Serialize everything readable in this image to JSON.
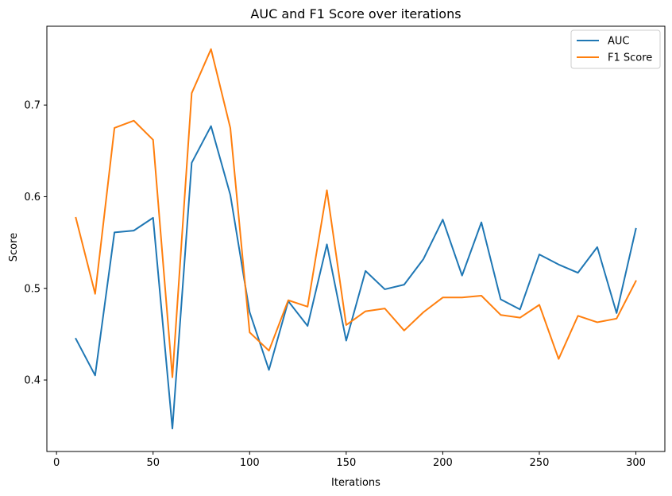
{
  "chart_data": {
    "type": "line",
    "title": "AUC and F1 Score over iterations",
    "xlabel": "Iterations",
    "ylabel": "Score",
    "xlim": [
      -5,
      315
    ],
    "ylim": [
      0.322,
      0.786
    ],
    "xticks": [
      0,
      50,
      100,
      150,
      200,
      250,
      300
    ],
    "yticks": [
      0.4,
      0.5,
      0.6,
      0.7
    ],
    "grid": false,
    "legend_position": "top-right",
    "x": [
      10,
      20,
      30,
      40,
      50,
      60,
      70,
      80,
      90,
      100,
      110,
      120,
      130,
      140,
      150,
      160,
      170,
      180,
      190,
      200,
      210,
      220,
      230,
      240,
      250,
      260,
      270,
      280,
      290,
      300
    ],
    "series": [
      {
        "name": "AUC",
        "color": "#1f77b4",
        "values": [
          0.445,
          0.405,
          0.561,
          0.563,
          0.577,
          0.347,
          0.637,
          0.677,
          0.602,
          0.474,
          0.411,
          0.486,
          0.459,
          0.548,
          0.443,
          0.519,
          0.499,
          0.504,
          0.532,
          0.575,
          0.514,
          0.572,
          0.488,
          0.477,
          0.537,
          0.526,
          0.517,
          0.545,
          0.473,
          0.565
        ]
      },
      {
        "name": "F1 Score",
        "color": "#ff7f0e",
        "values": [
          0.577,
          0.494,
          0.675,
          0.683,
          0.662,
          0.403,
          0.713,
          0.761,
          0.675,
          0.452,
          0.432,
          0.487,
          0.48,
          0.607,
          0.46,
          0.475,
          0.478,
          0.454,
          0.474,
          0.49,
          0.49,
          0.492,
          0.471,
          0.468,
          0.482,
          0.423,
          0.47,
          0.463,
          0.467,
          0.508
        ]
      }
    ]
  }
}
